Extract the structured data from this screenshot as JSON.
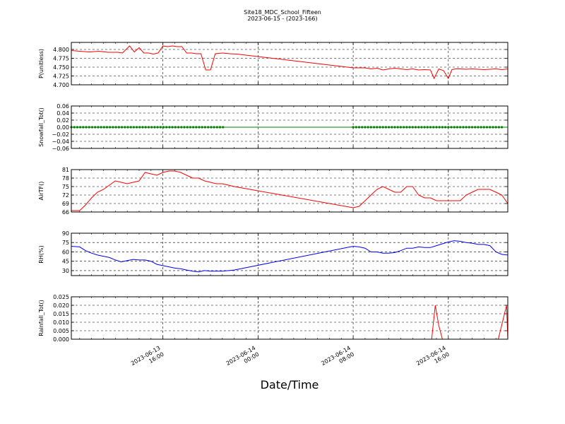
{
  "title": "Site18_MDC_School_Fifteen",
  "subtitle": "2023-06-15 - (2023-166)",
  "xlabel": "Date/Time",
  "x_ticks": [
    {
      "t": 16,
      "label_l1": "2023-06-13",
      "label_l2": "16:00"
    },
    {
      "t": 24,
      "label_l1": "2023-06-14",
      "label_l2": "00:00"
    },
    {
      "t": 32,
      "label_l1": "2023-06-14",
      "label_l2": "08:00"
    },
    {
      "t": 40,
      "label_l1": "2023-06-14",
      "label_l2": "16:00"
    }
  ],
  "colors": {
    "P": "#ff0000",
    "Snowfall": "#008000",
    "AirT": "#ff0000",
    "RH": "#0000ff",
    "Rainfall": "#ff0000"
  },
  "chart_data": [
    {
      "type": "line",
      "ylabel": "P(unitless)",
      "ylim": [
        4.7,
        4.82
      ],
      "yticks": [
        "4.700",
        "4.725",
        "4.750",
        "4.775",
        "4.800"
      ],
      "ytick_values": [
        4.7,
        4.725,
        4.75,
        4.775,
        4.8
      ],
      "grid": true,
      "series": [
        {
          "x": [
            8.3,
            9,
            9.8,
            10.6,
            11.4,
            12.2,
            12.6,
            13.2,
            13.6,
            14,
            14.4,
            14.8,
            15.2,
            15.6,
            16,
            16.4,
            16.8,
            17.2,
            17.6,
            18,
            18.4,
            18.8,
            19.2,
            19.6,
            20,
            20.4,
            21,
            21.6,
            22.2,
            32,
            32.5,
            33,
            33.5,
            34,
            34.5,
            35,
            35.5,
            36,
            36.5,
            37,
            37.5,
            38,
            38.5,
            38.8,
            39.2,
            39.6,
            40,
            40.3,
            40.6,
            41,
            41.5,
            42,
            42.5,
            43,
            43.5,
            44,
            44.5,
            45
          ],
          "y": [
            4.797,
            4.795,
            4.793,
            4.795,
            4.792,
            4.792,
            4.79,
            4.81,
            4.793,
            4.805,
            4.79,
            4.79,
            4.787,
            4.79,
            4.81,
            4.808,
            4.81,
            4.808,
            4.808,
            4.79,
            4.79,
            4.788,
            4.788,
            4.742,
            4.742,
            4.788,
            4.79,
            4.788,
            4.787,
            4.748,
            4.748,
            4.748,
            4.745,
            4.747,
            4.742,
            4.745,
            4.747,
            4.745,
            4.743,
            4.745,
            4.742,
            4.743,
            4.742,
            4.718,
            4.745,
            4.74,
            4.718,
            4.743,
            4.745,
            4.745,
            4.744,
            4.745,
            4.744,
            4.743,
            4.744,
            4.745,
            4.743,
            4.745
          ]
        }
      ]
    },
    {
      "type": "line",
      "ylabel": "Snowfall_Tot()",
      "ylim": [
        -0.06,
        0.06
      ],
      "yticks": [
        "−0.06",
        "−0.04",
        "−0.02",
        "0.00",
        "0.02",
        "0.04",
        "0.06"
      ],
      "ytick_values": [
        -0.06,
        -0.04,
        -0.02,
        0.0,
        0.02,
        0.04,
        0.06
      ],
      "grid": true,
      "series": [
        {
          "x": [
            8.3,
            45
          ],
          "y": [
            0,
            0
          ],
          "markers_ranges": [
            [
              8.3,
              21.2
            ],
            [
              32,
              44.6
            ]
          ]
        }
      ]
    },
    {
      "type": "line",
      "ylabel": "AirTF()",
      "ylim": [
        66,
        81
      ],
      "yticks": [
        "66",
        "69",
        "72",
        "75",
        "78",
        "81"
      ],
      "ytick_values": [
        66,
        69,
        72,
        75,
        78,
        81
      ],
      "grid": true,
      "series": [
        {
          "x": [
            8.3,
            9,
            9.5,
            10,
            10.5,
            11,
            11.5,
            12,
            12.5,
            13,
            13.5,
            14,
            14.5,
            15,
            15.5,
            16,
            16.5,
            17,
            17.5,
            18,
            18.5,
            19,
            19.5,
            20,
            20.5,
            21,
            21.5,
            22,
            32,
            32.5,
            33,
            33.5,
            34,
            34.5,
            35,
            35.5,
            36,
            36.5,
            37,
            37.5,
            38,
            38.5,
            39,
            39.5,
            40,
            40.5,
            41,
            41.5,
            42,
            42.5,
            43,
            43.5,
            44,
            44.5,
            45
          ],
          "y": [
            66.5,
            66.5,
            68.5,
            71,
            73,
            74,
            75.5,
            77,
            76.5,
            76,
            76.5,
            77,
            80,
            79.5,
            79,
            80,
            80.5,
            80.5,
            80,
            79,
            78,
            78,
            77,
            76.5,
            76,
            76,
            75.5,
            75,
            67.5,
            68,
            70,
            72,
            74,
            75,
            74,
            73,
            73,
            75,
            75,
            72,
            71,
            71,
            70,
            70,
            70,
            70,
            70,
            72,
            73,
            74,
            74,
            74,
            73,
            72,
            69
          ]
        }
      ]
    },
    {
      "type": "line",
      "ylabel": "RH(%)",
      "ylim": [
        22,
        90
      ],
      "yticks": [
        "30",
        "45",
        "60",
        "75",
        "90"
      ],
      "ytick_values": [
        30,
        45,
        60,
        75,
        90
      ],
      "grid": true,
      "series": [
        {
          "x": [
            8.3,
            9,
            9.5,
            10,
            10.5,
            11,
            11.5,
            12,
            12.5,
            13,
            13.5,
            14,
            14.5,
            15,
            15.5,
            16,
            16.5,
            17,
            17.5,
            18,
            18.5,
            19,
            19.5,
            20,
            21,
            22,
            32,
            32.5,
            33,
            33.5,
            34,
            34.5,
            35,
            35.5,
            36,
            36.5,
            37,
            37.5,
            38,
            38.5,
            39,
            39.5,
            40,
            40.5,
            41,
            41.5,
            42,
            42.5,
            43,
            43.5,
            44,
            44.5,
            45
          ],
          "y": [
            69,
            68,
            62,
            58,
            55,
            53,
            51,
            47,
            44,
            46,
            48,
            47,
            47,
            45,
            40,
            38,
            36,
            34,
            33,
            31,
            29,
            28,
            30,
            29,
            29,
            31,
            69,
            68,
            66,
            60,
            60,
            58,
            58,
            59,
            62,
            66,
            66,
            68,
            67,
            67,
            70,
            73,
            76,
            78,
            77,
            75,
            74,
            72,
            72,
            70,
            60,
            56,
            55
          ]
        }
      ]
    },
    {
      "type": "line",
      "ylabel": "Rainfall_Tot()",
      "ylim": [
        0.0,
        0.025
      ],
      "yticks": [
        "0.000",
        "0.005",
        "0.010",
        "0.015",
        "0.020",
        "0.025"
      ],
      "ytick_values": [
        0.0,
        0.005,
        0.01,
        0.015,
        0.02,
        0.025
      ],
      "grid": true,
      "series": [
        {
          "x": [
            8.3,
            38.6,
            38.9,
            39.2,
            39.5,
            44.2,
            44.9,
            45
          ],
          "y": [
            0,
            0,
            0.02,
            0.008,
            0,
            0,
            0.02,
            0
          ]
        }
      ]
    }
  ]
}
